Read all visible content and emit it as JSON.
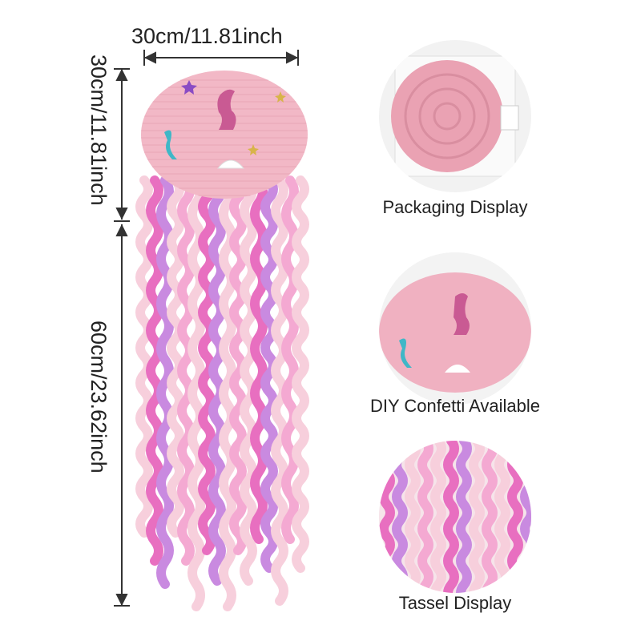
{
  "dimensions": {
    "width": "30cm/11.81inch",
    "lantern_height": "30cm/11.81inch",
    "tassel_length": "60cm/23.62inch"
  },
  "panels": [
    {
      "label": "Packaging Display",
      "icon": "packaged-lantern-photo"
    },
    {
      "label": "DIY Confetti Available",
      "icon": "lantern-confetti-photo"
    },
    {
      "label": "Tassel Display",
      "icon": "tassel-photo"
    }
  ],
  "colors": {
    "lantern": "#f2b8c6",
    "ribbon_light": "#f7cfdc",
    "ribbon_bright": "#e86fc0",
    "ribbon_iridescent": "#c98ae0"
  }
}
